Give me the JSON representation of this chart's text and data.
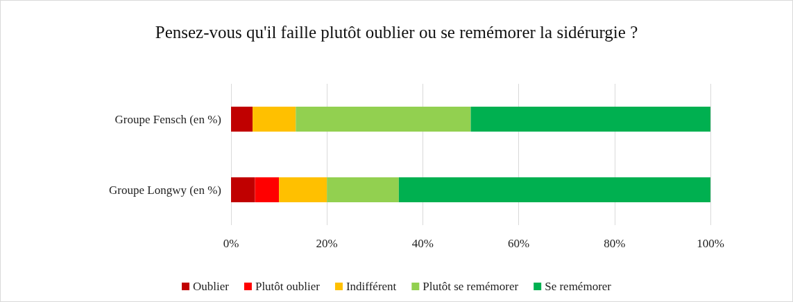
{
  "chart_data": {
    "type": "bar",
    "title": "Pensez-vous qu'il faille plutôt oublier ou se remémorer la sidérurgie ?",
    "orientation": "horizontal",
    "stacked": true,
    "categories": [
      "Groupe Fensch (en %)",
      "Groupe Longwy (en %)"
    ],
    "series": [
      {
        "name": "Oublier",
        "color": "#c00000",
        "values": [
          4.5,
          5
        ]
      },
      {
        "name": "Plutôt oublier",
        "color": "#ff0000",
        "values": [
          0,
          5
        ]
      },
      {
        "name": "Indifférent",
        "color": "#ffc000",
        "values": [
          9,
          10
        ]
      },
      {
        "name": "Plutôt se remémorer",
        "color": "#92d050",
        "values": [
          36.5,
          15
        ]
      },
      {
        "name": "Se remémorer",
        "color": "#00b050",
        "values": [
          50,
          65
        ]
      }
    ],
    "xlim": [
      0,
      100
    ],
    "xticks": [
      {
        "value": 0,
        "label": "0%"
      },
      {
        "value": 20,
        "label": "20%"
      },
      {
        "value": 40,
        "label": "40%"
      },
      {
        "value": 60,
        "label": "60%"
      },
      {
        "value": 80,
        "label": "80%"
      },
      {
        "value": 100,
        "label": "100%"
      }
    ],
    "grid": "x",
    "legend": "bottom"
  }
}
